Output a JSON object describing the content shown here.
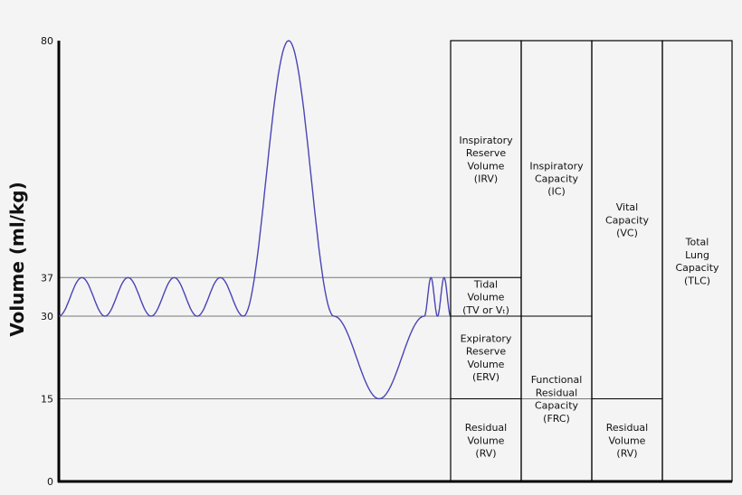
{
  "chart_data": {
    "type": "line",
    "title": "",
    "xlabel": "",
    "ylabel": "Volume (ml/kg)",
    "ylim": [
      0,
      80
    ],
    "yticks": [
      "0",
      "15",
      "30",
      "37",
      "80"
    ],
    "reference_lines": [
      37,
      30,
      15
    ],
    "series": [
      {
        "values_description_free": true,
        "breathing_trace": [
          {
            "phase": "tidal",
            "min": 30,
            "max": 37,
            "cycles": 4
          },
          {
            "phase": "max-inspiration",
            "peak": 80
          },
          {
            "phase": "max-expiration",
            "trough": 15
          },
          {
            "phase": "tidal",
            "min": 30,
            "max": 37,
            "cycles": 2
          }
        ]
      }
    ],
    "trace_color": "#4a45b5",
    "columns": [
      {
        "id": "volumes",
        "cells": [
          {
            "lines": [
              "Inspiratory",
              "Reserve",
              "Volume",
              "(IRV)"
            ],
            "from": 37,
            "to": 80
          },
          {
            "lines": [
              "Tidal",
              "Volume",
              "(TV or Vₜ)"
            ],
            "from": 30,
            "to": 37
          },
          {
            "lines": [
              "Expiratory",
              "Reserve",
              "Volume",
              "(ERV)"
            ],
            "from": 15,
            "to": 30
          },
          {
            "lines": [
              "Residual",
              "Volume",
              "(RV)"
            ],
            "from": 0,
            "to": 15
          }
        ]
      },
      {
        "id": "capacities",
        "cells": [
          {
            "lines": [
              "Inspiratory",
              "Capacity",
              "(IC)"
            ],
            "from": 30,
            "to": 80
          },
          {
            "lines": [
              "Functional",
              "Residual",
              "Capacity",
              "(FRC)"
            ],
            "from": 0,
            "to": 30
          }
        ]
      },
      {
        "id": "vital",
        "cells": [
          {
            "lines": [
              "Vital",
              "Capacity",
              "(VC)"
            ],
            "from": 15,
            "to": 80
          },
          {
            "lines": [
              "Residual",
              "Volume",
              "(RV)"
            ],
            "from": 0,
            "to": 15
          }
        ]
      },
      {
        "id": "total",
        "cells": [
          {
            "lines": [
              "Total",
              "Lung",
              "Capacity",
              "(TLC)"
            ],
            "from": 0,
            "to": 80
          }
        ]
      }
    ]
  }
}
